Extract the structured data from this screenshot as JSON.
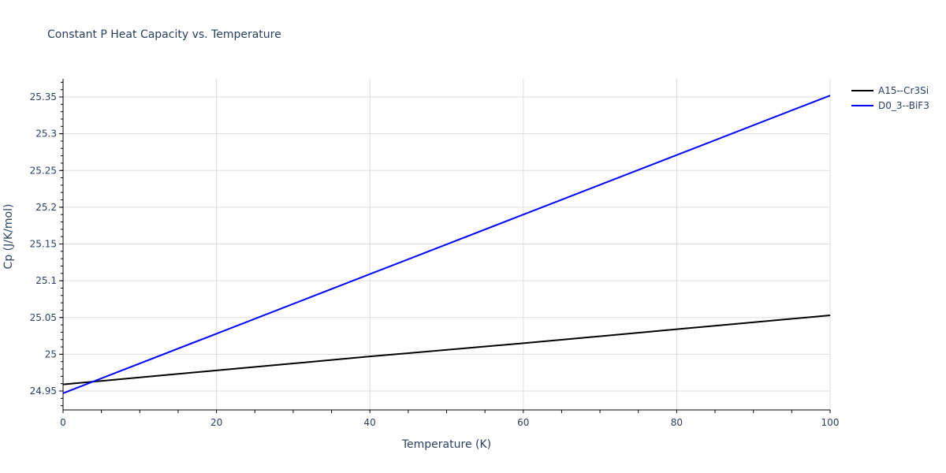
{
  "chart_data": {
    "type": "line",
    "title": "Constant P Heat Capacity vs. Temperature",
    "xlabel": "Temperature (K)",
    "ylabel": "Cp (J/K/mol)",
    "xlim": [
      0,
      100
    ],
    "ylim": [
      24.925,
      25.375
    ],
    "x_ticks": [
      0,
      20,
      40,
      60,
      80,
      100
    ],
    "x_tick_labels": [
      "0",
      "20",
      "40",
      "60",
      "80",
      "100"
    ],
    "y_ticks": [
      24.95,
      25,
      25.05,
      25.1,
      25.15,
      25.2,
      25.25,
      25.3,
      25.35
    ],
    "y_tick_labels": [
      "24.95",
      "25",
      "25.05",
      "25.1",
      "25.15",
      "25.2",
      "25.25",
      "25.3",
      "25.35"
    ],
    "grid": true,
    "legend_position": "top-right-outside",
    "x": [
      0,
      20,
      40,
      60,
      80,
      100
    ],
    "series": [
      {
        "name": "A15--Cr3Si",
        "color": "#000000",
        "values": [
          24.959,
          24.978,
          24.997,
          25.015,
          25.034,
          25.053
        ]
      },
      {
        "name": "D0_3--BiF3",
        "color": "#0000ff",
        "values": [
          24.947,
          25.028,
          25.109,
          25.19,
          25.271,
          25.352
        ]
      }
    ]
  }
}
